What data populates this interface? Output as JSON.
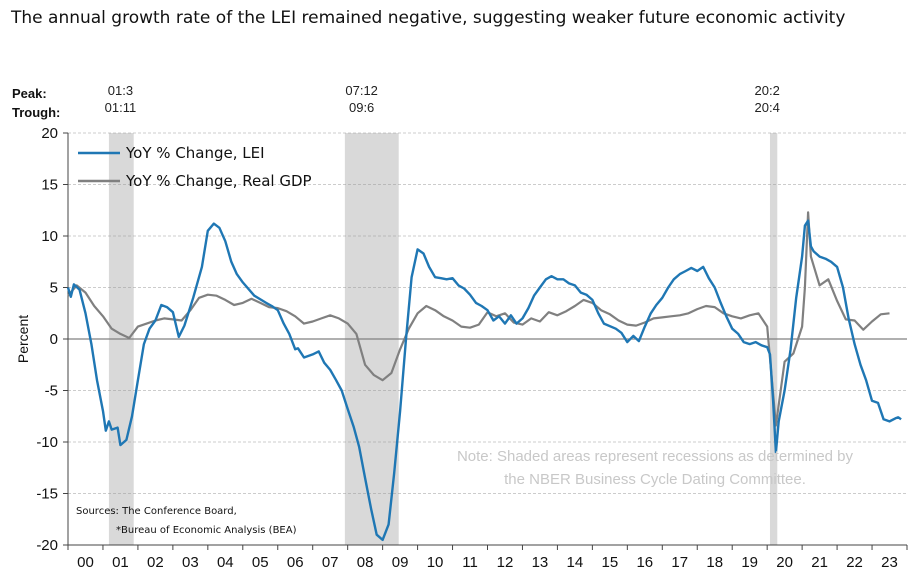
{
  "title": "The annual growth rate of the LEI remained negative, suggesting weaker future economic activity",
  "chart_data": {
    "type": "line",
    "ylabel": "Percent",
    "xlabel": "",
    "ylim": [
      -20,
      20
    ],
    "xlim": [
      2000.0,
      2024.0
    ],
    "yticks": [
      20,
      15,
      10,
      5,
      0,
      -5,
      -10,
      -15,
      -20
    ],
    "xtick_labels": [
      "00",
      "01",
      "02",
      "03",
      "04",
      "05",
      "06",
      "07",
      "08",
      "09",
      "10",
      "11",
      "12",
      "13",
      "14",
      "15",
      "16",
      "17",
      "18",
      "19",
      "20",
      "21",
      "22",
      "23"
    ],
    "legend_position": "top-left",
    "colors": {
      "lei": "#1f77b4",
      "gdp": "#808080",
      "recession": "#d9d9d9",
      "zero_line": "#808080"
    },
    "peak_label": "Peak:",
    "trough_label": "Trough:",
    "recessions": [
      {
        "peak": "01:3",
        "trough": "01:11",
        "start": 2001.17,
        "end": 2001.88
      },
      {
        "peak": "07:12",
        "trough": "09:6",
        "start": 2007.92,
        "end": 2009.46
      },
      {
        "peak": "20:2",
        "trough": "20:4",
        "start": 2020.08,
        "end": 2020.29
      }
    ],
    "series": [
      {
        "name": "YoY % Change, LEI",
        "color": "#1f77b4",
        "points": [
          [
            2000.0,
            5.0
          ],
          [
            2000.08,
            4.1
          ],
          [
            2000.17,
            5.3
          ],
          [
            2000.33,
            4.8
          ],
          [
            2000.5,
            2.5
          ],
          [
            2000.67,
            -0.5
          ],
          [
            2000.83,
            -4.0
          ],
          [
            2001.0,
            -7.0
          ],
          [
            2001.08,
            -8.9
          ],
          [
            2001.17,
            -8.0
          ],
          [
            2001.25,
            -8.8
          ],
          [
            2001.42,
            -8.6
          ],
          [
            2001.5,
            -10.3
          ],
          [
            2001.67,
            -9.8
          ],
          [
            2001.83,
            -7.5
          ],
          [
            2002.0,
            -4.0
          ],
          [
            2002.17,
            -0.5
          ],
          [
            2002.33,
            1.0
          ],
          [
            2002.5,
            1.8
          ],
          [
            2002.67,
            3.3
          ],
          [
            2002.83,
            3.1
          ],
          [
            2003.0,
            2.6
          ],
          [
            2003.17,
            0.2
          ],
          [
            2003.33,
            1.3
          ],
          [
            2003.58,
            4.0
          ],
          [
            2003.83,
            7.0
          ],
          [
            2004.0,
            10.5
          ],
          [
            2004.17,
            11.2
          ],
          [
            2004.33,
            10.8
          ],
          [
            2004.5,
            9.5
          ],
          [
            2004.67,
            7.5
          ],
          [
            2004.83,
            6.3
          ],
          [
            2005.0,
            5.5
          ],
          [
            2005.33,
            4.2
          ],
          [
            2005.67,
            3.5
          ],
          [
            2005.83,
            3.2
          ],
          [
            2006.0,
            2.8
          ],
          [
            2006.17,
            1.5
          ],
          [
            2006.33,
            0.5
          ],
          [
            2006.5,
            -1.0
          ],
          [
            2006.58,
            -0.9
          ],
          [
            2006.75,
            -1.8
          ],
          [
            2007.0,
            -1.5
          ],
          [
            2007.17,
            -1.2
          ],
          [
            2007.33,
            -2.3
          ],
          [
            2007.5,
            -3.0
          ],
          [
            2007.67,
            -4.0
          ],
          [
            2007.83,
            -5.0
          ],
          [
            2008.0,
            -6.8
          ],
          [
            2008.17,
            -8.5
          ],
          [
            2008.33,
            -10.5
          ],
          [
            2008.5,
            -13.5
          ],
          [
            2008.67,
            -16.5
          ],
          [
            2008.83,
            -19.0
          ],
          [
            2009.0,
            -19.5
          ],
          [
            2009.17,
            -18.0
          ],
          [
            2009.33,
            -13.0
          ],
          [
            2009.5,
            -7.0
          ],
          [
            2009.67,
            0.0
          ],
          [
            2009.83,
            6.0
          ],
          [
            2010.0,
            8.7
          ],
          [
            2010.17,
            8.3
          ],
          [
            2010.33,
            7.0
          ],
          [
            2010.5,
            6.0
          ],
          [
            2010.67,
            5.9
          ],
          [
            2010.83,
            5.8
          ],
          [
            2011.0,
            5.9
          ],
          [
            2011.17,
            5.2
          ],
          [
            2011.33,
            4.9
          ],
          [
            2011.5,
            4.3
          ],
          [
            2011.67,
            3.5
          ],
          [
            2011.83,
            3.2
          ],
          [
            2012.0,
            2.8
          ],
          [
            2012.17,
            1.8
          ],
          [
            2012.33,
            2.2
          ],
          [
            2012.5,
            1.5
          ],
          [
            2012.67,
            2.3
          ],
          [
            2012.83,
            1.5
          ],
          [
            2013.0,
            2.0
          ],
          [
            2013.17,
            3.0
          ],
          [
            2013.33,
            4.2
          ],
          [
            2013.5,
            5.0
          ],
          [
            2013.67,
            5.8
          ],
          [
            2013.83,
            6.1
          ],
          [
            2014.0,
            5.8
          ],
          [
            2014.17,
            5.8
          ],
          [
            2014.33,
            5.4
          ],
          [
            2014.5,
            5.2
          ],
          [
            2014.67,
            4.5
          ],
          [
            2014.83,
            4.3
          ],
          [
            2015.0,
            3.8
          ],
          [
            2015.17,
            2.5
          ],
          [
            2015.33,
            1.5
          ],
          [
            2015.67,
            1.0
          ],
          [
            2015.83,
            0.6
          ],
          [
            2016.0,
            -0.3
          ],
          [
            2016.17,
            0.3
          ],
          [
            2016.33,
            -0.2
          ],
          [
            2016.5,
            1.2
          ],
          [
            2016.67,
            2.5
          ],
          [
            2016.83,
            3.3
          ],
          [
            2017.0,
            4.0
          ],
          [
            2017.17,
            5.0
          ],
          [
            2017.33,
            5.8
          ],
          [
            2017.5,
            6.3
          ],
          [
            2017.67,
            6.6
          ],
          [
            2017.83,
            6.9
          ],
          [
            2018.0,
            6.6
          ],
          [
            2018.17,
            7.0
          ],
          [
            2018.33,
            5.9
          ],
          [
            2018.5,
            5.0
          ],
          [
            2018.67,
            3.5
          ],
          [
            2018.83,
            2.2
          ],
          [
            2019.0,
            1.0
          ],
          [
            2019.17,
            0.5
          ],
          [
            2019.33,
            -0.3
          ],
          [
            2019.5,
            -0.5
          ],
          [
            2019.67,
            -0.3
          ],
          [
            2019.83,
            -0.6
          ],
          [
            2020.0,
            -0.8
          ],
          [
            2020.08,
            -1.5
          ],
          [
            2020.17,
            -6.0
          ],
          [
            2020.25,
            -11.0
          ],
          [
            2020.33,
            -8.0
          ],
          [
            2020.5,
            -5.0
          ],
          [
            2020.67,
            -1.0
          ],
          [
            2020.83,
            4.0
          ],
          [
            2021.0,
            8.0
          ],
          [
            2021.08,
            11.0
          ],
          [
            2021.17,
            11.5
          ],
          [
            2021.25,
            9.0
          ],
          [
            2021.33,
            8.5
          ],
          [
            2021.5,
            8.0
          ],
          [
            2021.67,
            7.8
          ],
          [
            2021.83,
            7.5
          ],
          [
            2022.0,
            7.0
          ],
          [
            2022.17,
            5.0
          ],
          [
            2022.33,
            2.0
          ],
          [
            2022.5,
            -0.5
          ],
          [
            2022.67,
            -2.5
          ],
          [
            2022.83,
            -4.0
          ],
          [
            2023.0,
            -6.0
          ],
          [
            2023.17,
            -6.2
          ],
          [
            2023.33,
            -7.8
          ],
          [
            2023.5,
            -8.0
          ],
          [
            2023.67,
            -7.7
          ],
          [
            2023.75,
            -7.6
          ],
          [
            2023.83,
            -7.8
          ]
        ]
      },
      {
        "name": "YoY % Change, Real GDP",
        "color": "#808080",
        "points": [
          [
            2000.0,
            4.2
          ],
          [
            2000.25,
            5.2
          ],
          [
            2000.5,
            4.5
          ],
          [
            2000.75,
            3.2
          ],
          [
            2001.0,
            2.2
          ],
          [
            2001.25,
            1.0
          ],
          [
            2001.5,
            0.5
          ],
          [
            2001.75,
            0.1
          ],
          [
            2002.0,
            1.2
          ],
          [
            2002.25,
            1.5
          ],
          [
            2002.5,
            1.8
          ],
          [
            2002.75,
            2.0
          ],
          [
            2003.0,
            1.9
          ],
          [
            2003.25,
            1.8
          ],
          [
            2003.5,
            2.8
          ],
          [
            2003.75,
            4.0
          ],
          [
            2004.0,
            4.3
          ],
          [
            2004.25,
            4.2
          ],
          [
            2004.5,
            3.8
          ],
          [
            2004.75,
            3.3
          ],
          [
            2005.0,
            3.5
          ],
          [
            2005.25,
            3.9
          ],
          [
            2005.5,
            3.5
          ],
          [
            2005.75,
            3.1
          ],
          [
            2006.0,
            3.0
          ],
          [
            2006.25,
            2.7
          ],
          [
            2006.5,
            2.2
          ],
          [
            2006.75,
            1.5
          ],
          [
            2007.0,
            1.7
          ],
          [
            2007.25,
            2.0
          ],
          [
            2007.5,
            2.3
          ],
          [
            2007.75,
            2.0
          ],
          [
            2008.0,
            1.5
          ],
          [
            2008.25,
            0.5
          ],
          [
            2008.5,
            -2.5
          ],
          [
            2008.75,
            -3.5
          ],
          [
            2009.0,
            -4.0
          ],
          [
            2009.25,
            -3.3
          ],
          [
            2009.5,
            -1.0
          ],
          [
            2009.75,
            1.0
          ],
          [
            2010.0,
            2.5
          ],
          [
            2010.25,
            3.2
          ],
          [
            2010.5,
            2.8
          ],
          [
            2010.75,
            2.2
          ],
          [
            2011.0,
            1.8
          ],
          [
            2011.25,
            1.2
          ],
          [
            2011.5,
            1.1
          ],
          [
            2011.75,
            1.4
          ],
          [
            2012.0,
            2.6
          ],
          [
            2012.25,
            2.2
          ],
          [
            2012.5,
            2.5
          ],
          [
            2012.75,
            1.6
          ],
          [
            2013.0,
            1.4
          ],
          [
            2013.25,
            2.0
          ],
          [
            2013.5,
            1.7
          ],
          [
            2013.75,
            2.6
          ],
          [
            2014.0,
            2.3
          ],
          [
            2014.25,
            2.7
          ],
          [
            2014.5,
            3.2
          ],
          [
            2014.75,
            3.8
          ],
          [
            2015.0,
            3.5
          ],
          [
            2015.25,
            2.8
          ],
          [
            2015.5,
            2.4
          ],
          [
            2015.75,
            1.8
          ],
          [
            2016.0,
            1.4
          ],
          [
            2016.25,
            1.3
          ],
          [
            2016.5,
            1.6
          ],
          [
            2016.75,
            2.0
          ],
          [
            2017.0,
            2.1
          ],
          [
            2017.25,
            2.2
          ],
          [
            2017.5,
            2.3
          ],
          [
            2017.75,
            2.5
          ],
          [
            2018.0,
            2.9
          ],
          [
            2018.25,
            3.2
          ],
          [
            2018.5,
            3.1
          ],
          [
            2018.75,
            2.5
          ],
          [
            2019.0,
            2.2
          ],
          [
            2019.25,
            2.0
          ],
          [
            2019.5,
            2.3
          ],
          [
            2019.75,
            2.5
          ],
          [
            2020.0,
            1.2
          ],
          [
            2020.25,
            -8.4
          ],
          [
            2020.5,
            -2.2
          ],
          [
            2020.75,
            -1.4
          ],
          [
            2021.0,
            1.2
          ],
          [
            2021.08,
            5.0
          ],
          [
            2021.17,
            12.3
          ],
          [
            2021.25,
            8.0
          ],
          [
            2021.5,
            5.2
          ],
          [
            2021.75,
            5.8
          ],
          [
            2022.0,
            3.7
          ],
          [
            2022.25,
            1.9
          ],
          [
            2022.5,
            1.8
          ],
          [
            2022.75,
            0.9
          ],
          [
            2023.0,
            1.7
          ],
          [
            2023.25,
            2.4
          ],
          [
            2023.5,
            2.5
          ]
        ]
      }
    ],
    "note_lines": [
      "Note: Shaded areas represent recessions as determined by",
      "the NBER Business Cycle Dating Committee."
    ],
    "source_lines": [
      "Sources: The Conference Board,",
      "*Bureau of Economic Analysis (BEA)"
    ]
  }
}
